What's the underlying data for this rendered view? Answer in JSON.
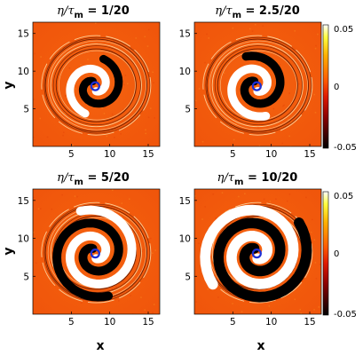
{
  "chart_data": [
    {
      "type": "heatmap",
      "title": "η/τm = 1/20",
      "title_parts": {
        "var": "η/τ",
        "sub": "m",
        "value": " = 1/20"
      },
      "xlabel": "",
      "ylabel": "y",
      "xlim": [
        0,
        16.5
      ],
      "ylim": [
        0,
        16.5
      ],
      "xticks": [
        5,
        10,
        15
      ],
      "yticks": [
        5,
        10,
        15
      ],
      "spiral_turns": 0.9,
      "spiral_width": 1.0
    },
    {
      "type": "heatmap",
      "title": "η/τm = 2.5/20",
      "title_parts": {
        "var": "η/τ",
        "sub": "m",
        "value": " = 2.5/20"
      },
      "xlabel": "",
      "ylabel": "",
      "xlim": [
        0,
        16.5
      ],
      "ylim": [
        0,
        16.5
      ],
      "xticks": [
        5,
        10,
        15
      ],
      "yticks": [
        5,
        10,
        15
      ],
      "spiral_turns": 1.0,
      "spiral_width": 1.05
    },
    {
      "type": "heatmap",
      "title": "η/τm = 5/20",
      "title_parts": {
        "var": "η/τ",
        "sub": "m",
        "value": " = 5/20"
      },
      "xlabel": "x",
      "ylabel": "y",
      "xlim": [
        0,
        16.5
      ],
      "ylim": [
        0,
        16.5
      ],
      "xticks": [
        5,
        10,
        15
      ],
      "yticks": [
        5,
        10,
        15
      ],
      "spiral_turns": 1.5,
      "spiral_width": 1.1
    },
    {
      "type": "heatmap",
      "title": "η/τm = 10/20",
      "title_parts": {
        "var": "η/τ",
        "sub": "m",
        "value": " = 10/20"
      },
      "xlabel": "x",
      "ylabel": "",
      "xlim": [
        0,
        16.5
      ],
      "ylim": [
        0,
        16.5
      ],
      "xticks": [
        5,
        10,
        15
      ],
      "yticks": [
        5,
        10,
        15
      ],
      "spiral_turns": 1.8,
      "spiral_width": 1.3
    }
  ],
  "colorbar": {
    "range": [
      -0.05,
      0.05
    ],
    "ticks": [
      {
        "value": 0.05,
        "label": "0.05"
      },
      {
        "value": 0,
        "label": "0"
      },
      {
        "value": -0.05,
        "label": "-0.05"
      }
    ],
    "colormap": "hot"
  },
  "colors": {
    "background_field": "#f25a0c",
    "marker": "#1c2fd6",
    "positive": "#ffffff",
    "negative": "#000000"
  }
}
